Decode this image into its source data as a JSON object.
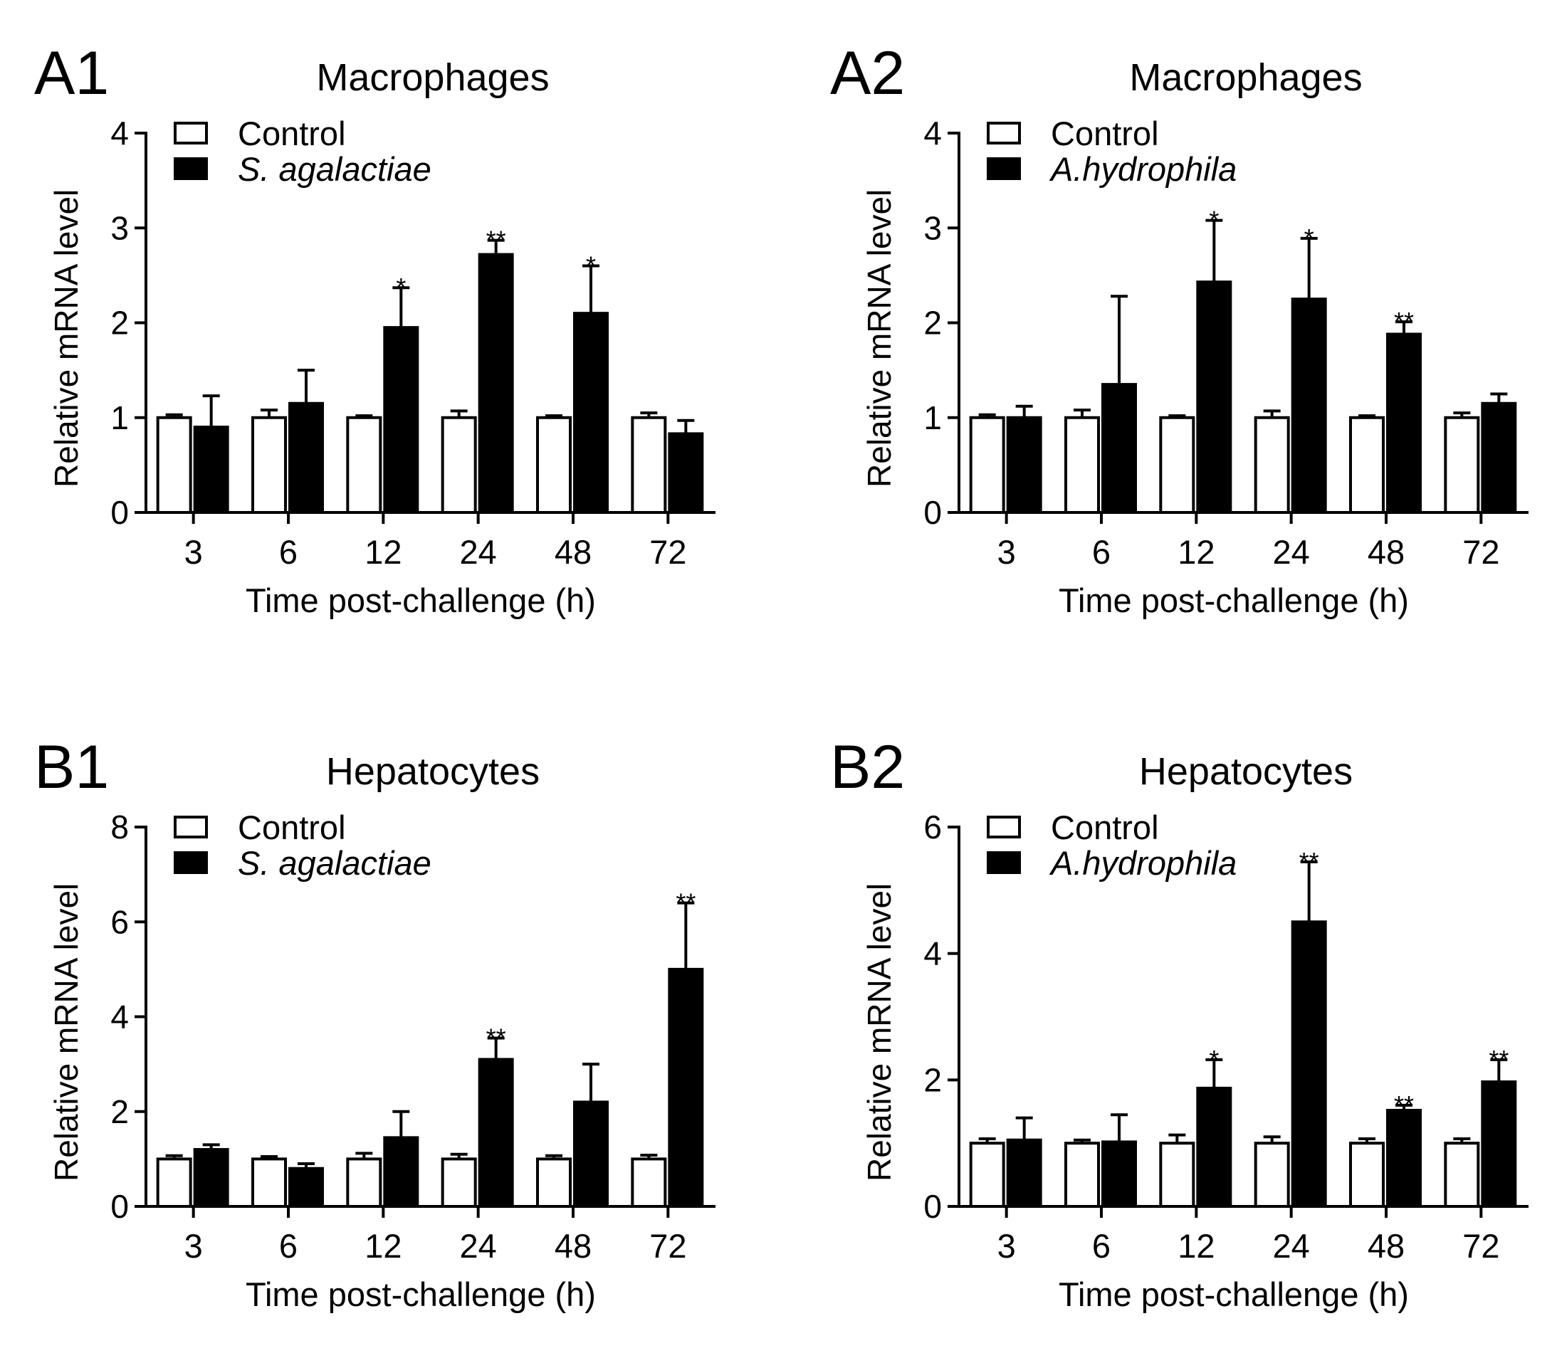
{
  "chart_data": [
    {
      "panel": "A1",
      "title": "Macrophages",
      "type": "bar",
      "categories": [
        "3",
        "6",
        "12",
        "24",
        "48",
        "72"
      ],
      "xlabel": "Time post-challenge (h)",
      "ylabel": "Relative mRNA level",
      "ylim": [
        0,
        4
      ],
      "yticks": [
        0,
        1,
        2,
        3,
        4
      ],
      "series": [
        {
          "name": "Control",
          "style": "open",
          "italic": false,
          "values": [
            1.0,
            1.0,
            1.0,
            1.0,
            1.0,
            1.0
          ],
          "errors": [
            0.03,
            0.08,
            0.02,
            0.07,
            0.02,
            0.05
          ]
        },
        {
          "name": "S. agalactiae",
          "style": "filled",
          "italic": true,
          "values": [
            0.9,
            1.15,
            1.95,
            2.72,
            2.1,
            0.83
          ],
          "errors": [
            0.33,
            0.35,
            0.42,
            0.15,
            0.5,
            0.14
          ]
        }
      ],
      "significance": [
        "",
        "",
        "*",
        "**",
        "*",
        ""
      ]
    },
    {
      "panel": "A2",
      "title": "Macrophages",
      "type": "bar",
      "categories": [
        "3",
        "6",
        "12",
        "24",
        "48",
        "72"
      ],
      "xlabel": "Time post-challenge (h)",
      "ylabel": "Relative mRNA level",
      "ylim": [
        0,
        4
      ],
      "yticks": [
        0,
        1,
        2,
        3,
        4
      ],
      "series": [
        {
          "name": "Control",
          "style": "open",
          "italic": false,
          "values": [
            1.0,
            1.0,
            1.0,
            1.0,
            1.0,
            1.0
          ],
          "errors": [
            0.03,
            0.08,
            0.02,
            0.07,
            0.02,
            0.05
          ]
        },
        {
          "name": "A.hydrophila",
          "style": "filled",
          "italic": true,
          "values": [
            1.0,
            1.35,
            2.43,
            2.25,
            1.88,
            1.15
          ],
          "errors": [
            0.12,
            0.93,
            0.65,
            0.64,
            0.13,
            0.1
          ]
        }
      ],
      "significance": [
        "",
        "",
        "*",
        "*",
        "**",
        ""
      ]
    },
    {
      "panel": "B1",
      "title": "Hepatocytes",
      "type": "bar",
      "categories": [
        "3",
        "6",
        "12",
        "24",
        "48",
        "72"
      ],
      "xlabel": "Time post-challenge (h)",
      "ylabel": "Relative mRNA level",
      "ylim": [
        0,
        8
      ],
      "yticks": [
        0,
        2,
        4,
        6,
        8
      ],
      "series": [
        {
          "name": "Control",
          "style": "open",
          "italic": false,
          "values": [
            1.0,
            1.0,
            1.0,
            1.0,
            1.0,
            1.0
          ],
          "errors": [
            0.07,
            0.05,
            0.12,
            0.1,
            0.07,
            0.08
          ]
        },
        {
          "name": "S. agalactiae",
          "style": "filled",
          "italic": true,
          "values": [
            1.2,
            0.8,
            1.45,
            3.1,
            2.2,
            5.0
          ],
          "errors": [
            0.1,
            0.1,
            0.55,
            0.45,
            0.8,
            1.4
          ]
        }
      ],
      "significance": [
        "",
        "",
        "",
        "**",
        "",
        "**"
      ]
    },
    {
      "panel": "B2",
      "title": "Hepatocytes",
      "type": "bar",
      "categories": [
        "3",
        "6",
        "12",
        "24",
        "48",
        "72"
      ],
      "xlabel": "Time post-challenge (h)",
      "ylabel": "Relative mRNA level",
      "ylim": [
        0,
        6
      ],
      "yticks": [
        0,
        2,
        4,
        6
      ],
      "series": [
        {
          "name": "Control",
          "style": "open",
          "italic": false,
          "values": [
            1.0,
            1.0,
            1.0,
            1.0,
            1.0,
            1.0
          ],
          "errors": [
            0.07,
            0.05,
            0.13,
            0.1,
            0.07,
            0.07
          ]
        },
        {
          "name": "A.hydrophila",
          "style": "filled",
          "italic": true,
          "values": [
            1.05,
            1.02,
            1.87,
            4.5,
            1.52,
            1.97
          ],
          "errors": [
            0.35,
            0.43,
            0.45,
            0.95,
            0.08,
            0.35
          ]
        }
      ],
      "significance": [
        "",
        "",
        "*",
        "**",
        "**",
        "**"
      ]
    }
  ]
}
